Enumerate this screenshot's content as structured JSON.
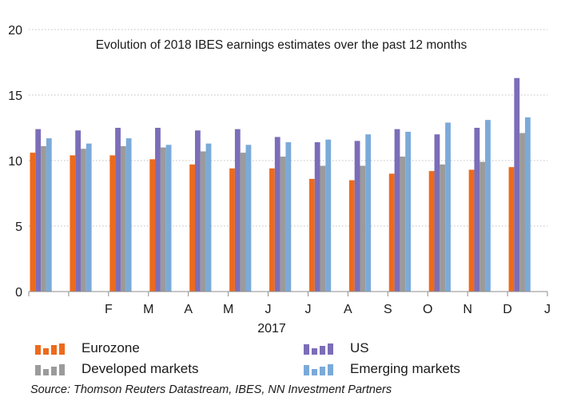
{
  "chart_data": {
    "type": "bar",
    "title": "Evolution of 2018 IBES earnings estimates over the past 12 months",
    "xlabel": "2017",
    "ylabel": "",
    "ylim": [
      0,
      20
    ],
    "yticks": [
      "0",
      "5",
      "10",
      "15",
      "20"
    ],
    "grid": "horizontal-dotted",
    "legend_position": "bottom",
    "categories": [
      "",
      "F",
      "M",
      "A",
      "M",
      "J",
      "J",
      "A",
      "S",
      "O",
      "N",
      "D",
      "J"
    ],
    "series": [
      {
        "name": "Eurozone",
        "color": "#ED6A1C",
        "values": [
          10.6,
          10.4,
          10.4,
          10.1,
          9.7,
          9.4,
          9.4,
          8.6,
          8.5,
          9.0,
          9.2,
          9.3,
          9.5
        ]
      },
      {
        "name": "US",
        "color": "#7B6DB8",
        "values": [
          12.4,
          12.3,
          12.5,
          12.5,
          12.3,
          12.4,
          11.8,
          11.4,
          11.5,
          12.4,
          12.0,
          12.5,
          16.3
        ]
      },
      {
        "name": "Developed markets",
        "color": "#9B9B9B",
        "values": [
          11.1,
          10.9,
          11.1,
          11.0,
          10.7,
          10.6,
          10.3,
          9.6,
          9.6,
          10.3,
          9.7,
          9.9,
          12.1
        ]
      },
      {
        "name": "Emerging markets",
        "color": "#7BAAD9",
        "values": [
          11.7,
          11.3,
          11.7,
          11.2,
          11.3,
          11.2,
          11.4,
          11.6,
          12.0,
          12.2,
          12.9,
          13.1,
          13.3
        ]
      }
    ]
  },
  "source": "Source: Thomson Reuters Datastream, IBES, NN Investment Partners"
}
